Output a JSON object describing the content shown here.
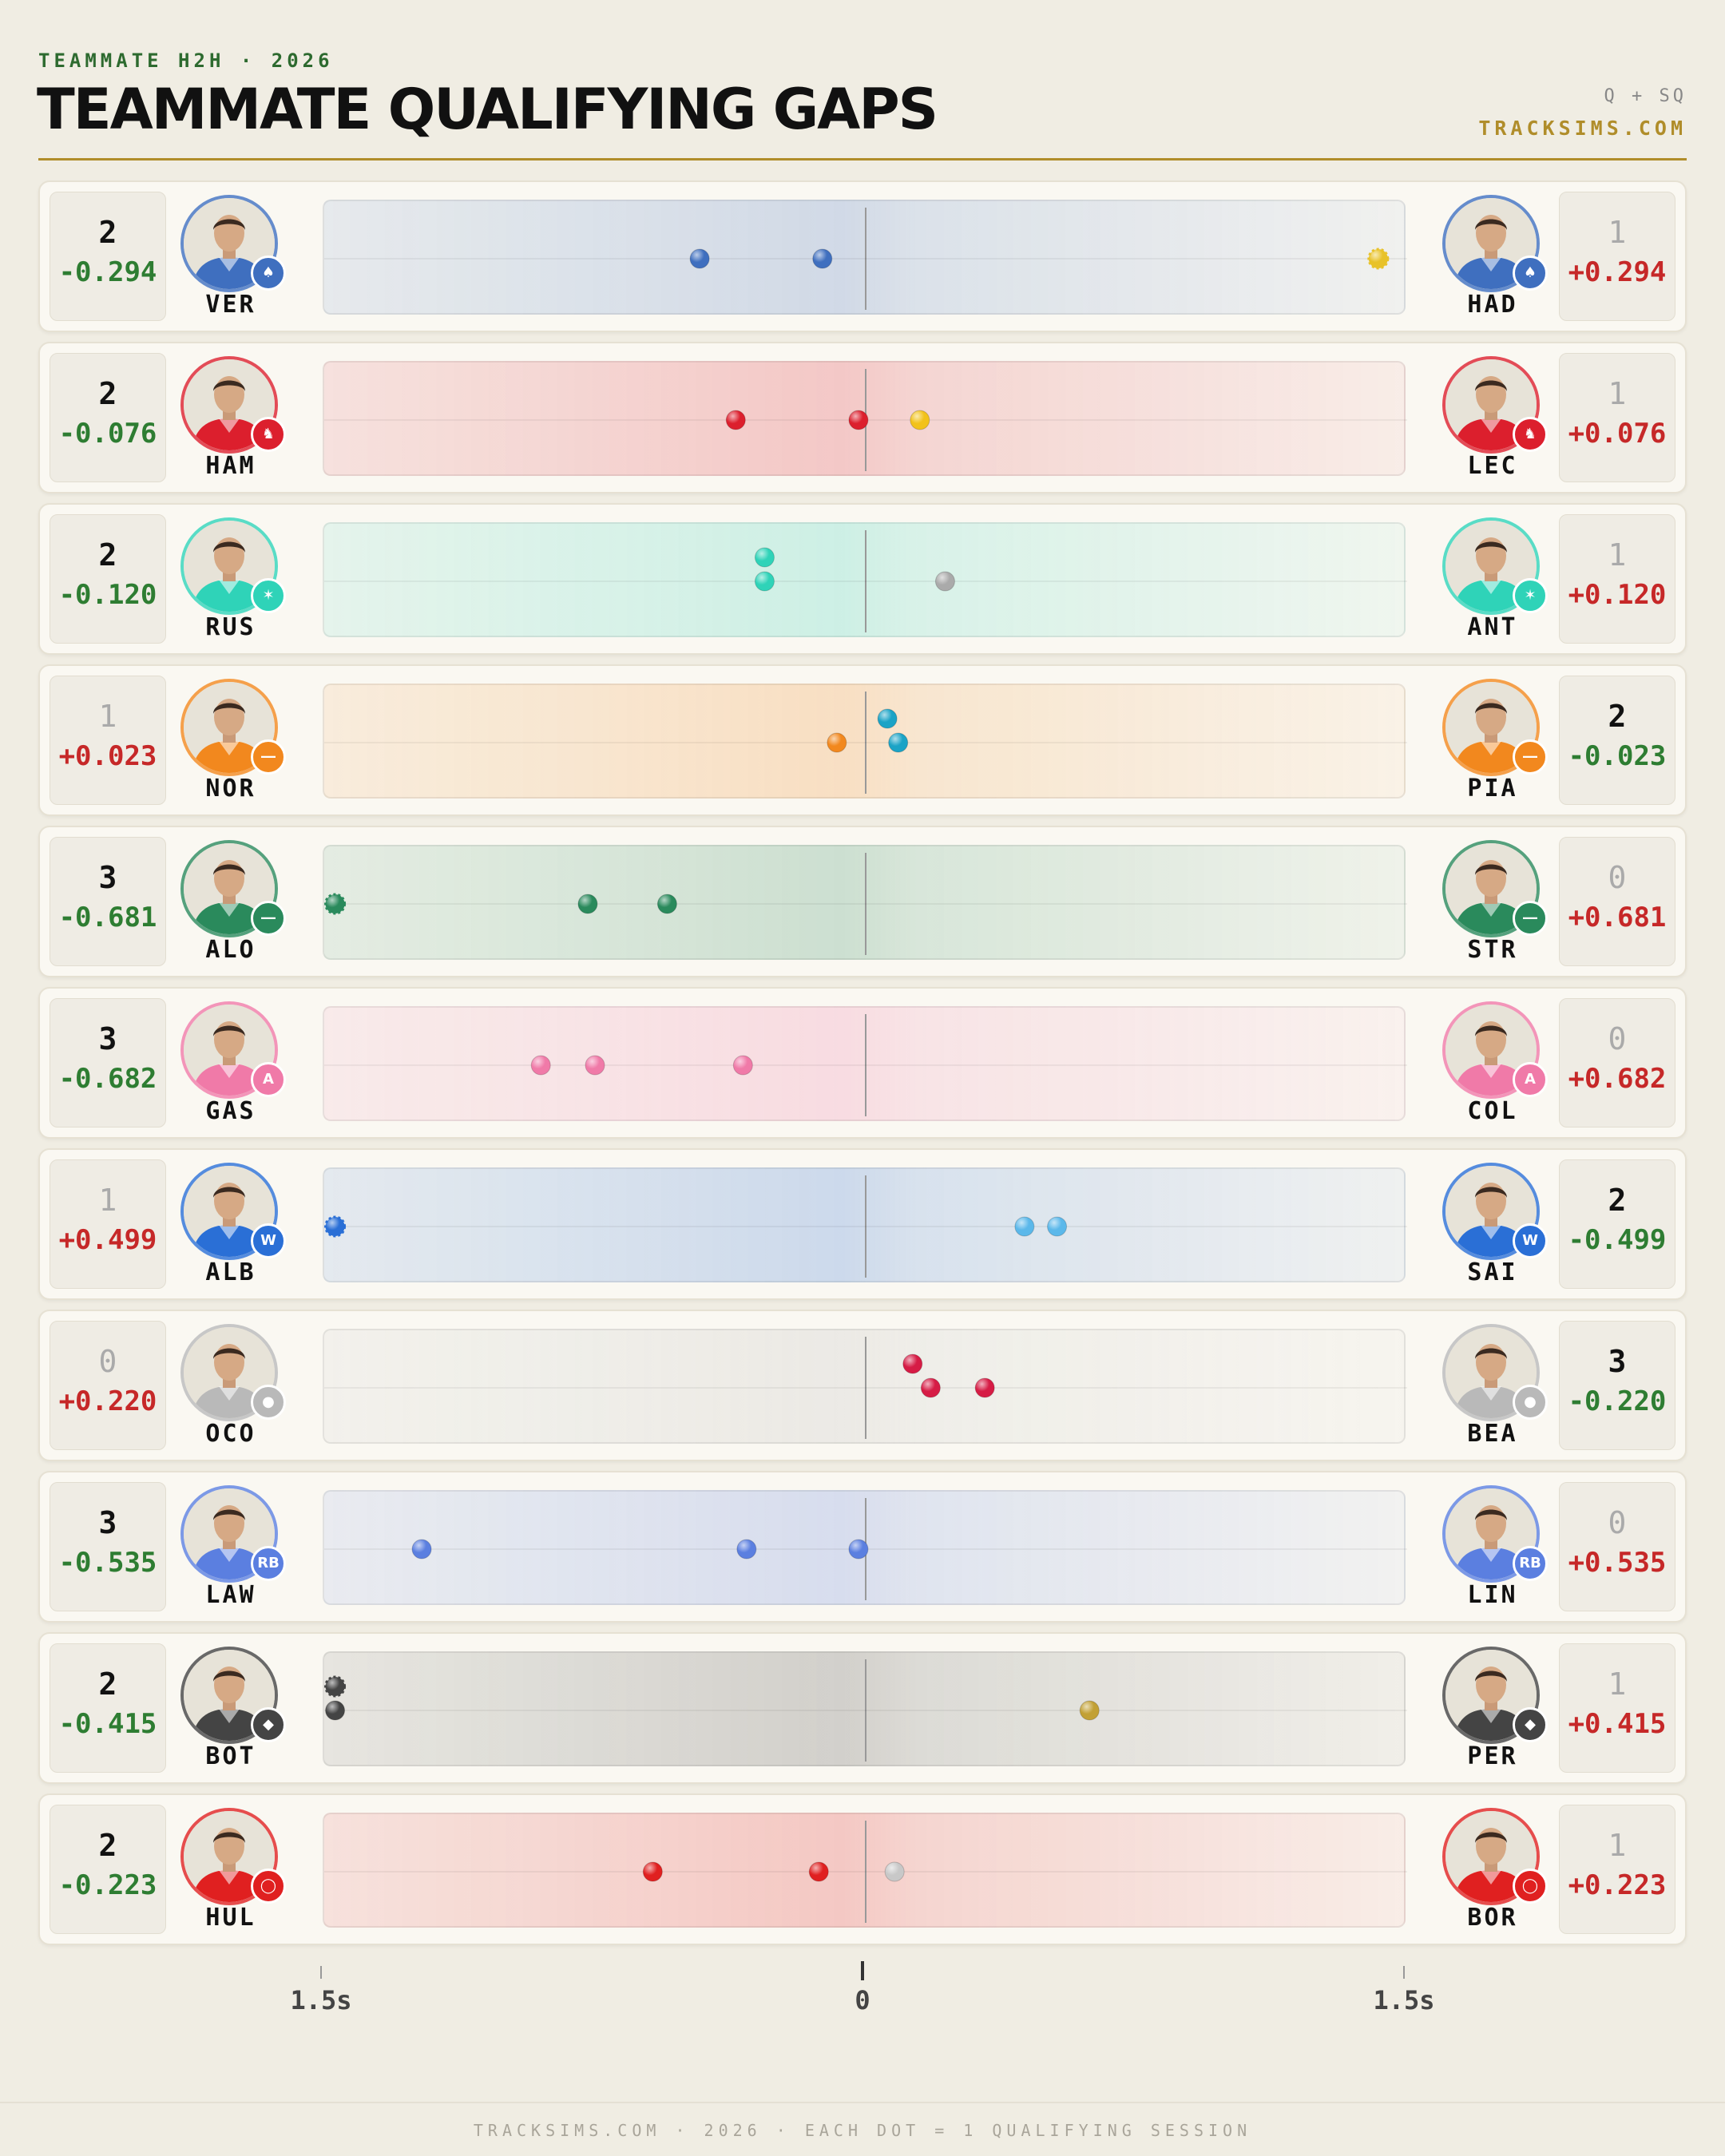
{
  "header": {
    "kicker": "TEAMMATE H2H · 2026",
    "title": "TEAMMATE QUALIFYING GAPS",
    "tag": "Q + SQ",
    "site": "TRACKSIMS.COM"
  },
  "footer": "TRACKSIMS.COM · 2026 · EACH DOT = 1 QUALIFYING SESSION",
  "chart_data": {
    "type": "scatter",
    "x_unit": "s",
    "xlim": [
      -1.5,
      1.5
    ],
    "x_ticks": [
      {
        "value": -1.5,
        "label": "1.5s"
      },
      {
        "value": 0,
        "label": "0"
      },
      {
        "value": 1.5,
        "label": "1.5s"
      }
    ],
    "rows": [
      {
        "left": {
          "code": "VER",
          "wins": "2",
          "gap": "-0.294"
        },
        "right": {
          "code": "HAD",
          "wins": "1",
          "gap": "+0.294"
        },
        "team_color": "#3f6fbf",
        "badge_icon": "bull-icon",
        "sessions": [
          {
            "gap": -0.46,
            "lane": 0
          },
          {
            "gap": -0.12,
            "lane": 0
          },
          {
            "gap": 1.42,
            "lane": 0,
            "color": "#e8c229",
            "dashed": true
          }
        ]
      },
      {
        "left": {
          "code": "HAM",
          "wins": "2",
          "gap": "-0.076"
        },
        "right": {
          "code": "LEC",
          "wins": "1",
          "gap": "+0.076"
        },
        "team_color": "#dc1f2d",
        "badge_icon": "horse-icon",
        "sessions": [
          {
            "gap": -0.36,
            "lane": 0
          },
          {
            "gap": -0.02,
            "lane": 0
          },
          {
            "gap": 0.15,
            "lane": 0,
            "color": "#f2c21a"
          }
        ]
      },
      {
        "left": {
          "code": "RUS",
          "wins": "2",
          "gap": "-0.120"
        },
        "right": {
          "code": "ANT",
          "wins": "1",
          "gap": "+0.120"
        },
        "team_color": "#2fd3b8",
        "badge_icon": "star-icon",
        "sessions": [
          {
            "gap": -0.28,
            "lane": -1
          },
          {
            "gap": -0.28,
            "lane": 0
          },
          {
            "gap": 0.22,
            "lane": 0,
            "color": "#aaaaaa"
          }
        ]
      },
      {
        "left": {
          "code": "NOR",
          "wins": "1",
          "gap": "+0.023"
        },
        "right": {
          "code": "PIA",
          "wins": "2",
          "gap": "-0.023"
        },
        "team_color": "#f2881e",
        "badge_icon": "swoosh-icon",
        "sessions": [
          {
            "gap": -0.08,
            "lane": 0
          },
          {
            "gap": 0.06,
            "lane": -1,
            "color": "#1ba3c6"
          },
          {
            "gap": 0.09,
            "lane": 0,
            "color": "#1ba3c6"
          }
        ]
      },
      {
        "left": {
          "code": "ALO",
          "wins": "3",
          "gap": "-0.681"
        },
        "right": {
          "code": "STR",
          "wins": "0",
          "gap": "+0.681"
        },
        "team_color": "#2a8a5c",
        "badge_icon": "wings-icon",
        "sessions": [
          {
            "gap": -1.47,
            "lane": 0,
            "dashed": true
          },
          {
            "gap": -0.77,
            "lane": 0
          },
          {
            "gap": -0.55,
            "lane": 0
          }
        ]
      },
      {
        "left": {
          "code": "GAS",
          "wins": "3",
          "gap": "-0.682"
        },
        "right": {
          "code": "COL",
          "wins": "0",
          "gap": "+0.682"
        },
        "team_color": "#f07aa8",
        "badge_icon": "alpine-icon",
        "sessions": [
          {
            "gap": -0.9,
            "lane": 0
          },
          {
            "gap": -0.75,
            "lane": 0
          },
          {
            "gap": -0.34,
            "lane": 0
          }
        ]
      },
      {
        "left": {
          "code": "ALB",
          "wins": "1",
          "gap": "+0.499"
        },
        "right": {
          "code": "SAI",
          "wins": "2",
          "gap": "-0.499"
        },
        "team_color": "#2a6fd6",
        "badge_icon": "w-icon",
        "sessions": [
          {
            "gap": -1.47,
            "lane": 0,
            "dashed": true
          },
          {
            "gap": 0.44,
            "lane": 0,
            "color": "#5bb8ea"
          },
          {
            "gap": 0.53,
            "lane": 0,
            "color": "#5bb8ea"
          }
        ]
      },
      {
        "left": {
          "code": "OCO",
          "wins": "0",
          "gap": "+0.220"
        },
        "right": {
          "code": "BEA",
          "wins": "3",
          "gap": "-0.220"
        },
        "team_color": "#b9b9b9",
        "badge_icon": "haas-icon",
        "sessions": [
          {
            "gap": 0.13,
            "lane": -1,
            "color": "#d61c45"
          },
          {
            "gap": 0.18,
            "lane": 0,
            "color": "#d61c45"
          },
          {
            "gap": 0.33,
            "lane": 0,
            "color": "#d61c45"
          }
        ]
      },
      {
        "left": {
          "code": "LAW",
          "wins": "3",
          "gap": "-0.535"
        },
        "right": {
          "code": "LIN",
          "wins": "0",
          "gap": "+0.535"
        },
        "team_color": "#5b7fe0",
        "badge_icon": "rb-icon",
        "sessions": [
          {
            "gap": -1.23,
            "lane": 0
          },
          {
            "gap": -0.33,
            "lane": 0
          },
          {
            "gap": -0.02,
            "lane": 0
          }
        ]
      },
      {
        "left": {
          "code": "BOT",
          "wins": "2",
          "gap": "-0.415"
        },
        "right": {
          "code": "PER",
          "wins": "1",
          "gap": "+0.415"
        },
        "team_color": "#444444",
        "badge_icon": "cadillac-icon",
        "sessions": [
          {
            "gap": -1.47,
            "lane": -1,
            "dashed": true
          },
          {
            "gap": -1.47,
            "lane": 0
          },
          {
            "gap": 0.62,
            "lane": 0,
            "color": "#c2a034"
          }
        ]
      },
      {
        "left": {
          "code": "HUL",
          "wins": "2",
          "gap": "-0.223"
        },
        "right": {
          "code": "BOR",
          "wins": "1",
          "gap": "+0.223"
        },
        "team_color": "#e02020",
        "badge_icon": "audi-icon",
        "sessions": [
          {
            "gap": -0.59,
            "lane": 0
          },
          {
            "gap": -0.13,
            "lane": 0
          },
          {
            "gap": 0.08,
            "lane": 0,
            "color": "#c8c8c8"
          }
        ]
      }
    ]
  }
}
